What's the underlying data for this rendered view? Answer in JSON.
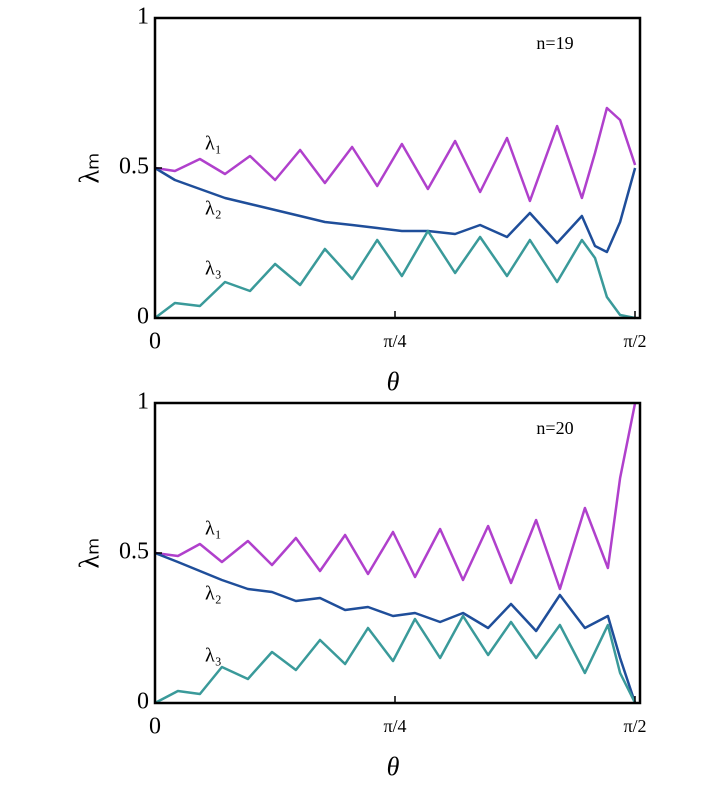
{
  "chart_data": [
    {
      "type": "line",
      "annotation": "n=19",
      "xlabel": "θ",
      "ylabel": "λₘ",
      "x": [
        0,
        0.065,
        0.147,
        0.229,
        0.311,
        0.393,
        0.475,
        0.556,
        0.645,
        0.727,
        0.808,
        0.893,
        0.982,
        1.064,
        1.152,
        1.227,
        1.316,
        1.397,
        1.44,
        1.479,
        1.522,
        1.571
      ],
      "series": [
        {
          "name": "λ₁",
          "color": "#b040cc",
          "values": [
            0.5,
            0.49,
            0.53,
            0.48,
            0.54,
            0.46,
            0.56,
            0.45,
            0.57,
            0.44,
            0.58,
            0.43,
            0.59,
            0.42,
            0.6,
            0.39,
            0.64,
            0.4,
            0.55,
            0.7,
            0.66,
            0.51
          ]
        },
        {
          "name": "λ₂",
          "color": "#1f4e9a",
          "values": [
            0.5,
            0.46,
            0.43,
            0.4,
            0.38,
            0.36,
            0.34,
            0.32,
            0.31,
            0.3,
            0.29,
            0.29,
            0.28,
            0.31,
            0.27,
            0.35,
            0.25,
            0.34,
            0.24,
            0.22,
            0.32,
            0.5
          ]
        },
        {
          "name": "λ₃",
          "color": "#3a9a9a",
          "values": [
            0,
            0.05,
            0.04,
            0.12,
            0.09,
            0.18,
            0.11,
            0.23,
            0.13,
            0.26,
            0.14,
            0.29,
            0.15,
            0.27,
            0.14,
            0.26,
            0.12,
            0.26,
            0.2,
            0.07,
            0.01,
            0
          ]
        }
      ],
      "xlim": [
        0,
        1.5707963267948966
      ],
      "xticks": [
        0,
        {
          "value": 0.7853981633974483,
          "label": "π/4"
        },
        {
          "value": 1.5707963267948966,
          "label": "π/2"
        }
      ],
      "ylim": [
        0,
        1
      ],
      "yticks": [
        0,
        0.5,
        1
      ]
    },
    {
      "type": "line",
      "annotation": "n=20",
      "xlabel": "θ",
      "ylabel": "λₘ",
      "x": [
        0,
        0.075,
        0.147,
        0.219,
        0.304,
        0.383,
        0.461,
        0.54,
        0.622,
        0.697,
        0.779,
        0.851,
        0.933,
        1.008,
        1.09,
        1.165,
        1.247,
        1.325,
        1.407,
        1.482,
        1.522,
        1.571
      ],
      "series": [
        {
          "name": "λ₁",
          "color": "#b040cc",
          "values": [
            0.5,
            0.49,
            0.53,
            0.47,
            0.54,
            0.46,
            0.55,
            0.44,
            0.56,
            0.43,
            0.57,
            0.42,
            0.58,
            0.41,
            0.59,
            0.4,
            0.61,
            0.38,
            0.65,
            0.45,
            0.75,
            1
          ]
        },
        {
          "name": "λ₂",
          "color": "#1f4e9a",
          "values": [
            0.5,
            0.47,
            0.44,
            0.41,
            0.38,
            0.37,
            0.34,
            0.35,
            0.31,
            0.32,
            0.29,
            0.3,
            0.27,
            0.3,
            0.25,
            0.33,
            0.24,
            0.36,
            0.25,
            0.29,
            0.15,
            0
          ]
        },
        {
          "name": "λ₃",
          "color": "#3a9a9a",
          "values": [
            0,
            0.04,
            0.03,
            0.12,
            0.08,
            0.17,
            0.11,
            0.21,
            0.13,
            0.25,
            0.14,
            0.28,
            0.15,
            0.29,
            0.16,
            0.27,
            0.15,
            0.26,
            0.1,
            0.26,
            0.1,
            0
          ]
        }
      ],
      "xlim": [
        0,
        1.5707963267948966
      ],
      "xticks": [
        0,
        {
          "value": 0.7853981633974483,
          "label": "π/4"
        },
        {
          "value": 1.5707963267948966,
          "label": "π/2"
        }
      ],
      "ylim": [
        0,
        1
      ],
      "yticks": [
        0,
        0.5,
        1
      ]
    }
  ]
}
